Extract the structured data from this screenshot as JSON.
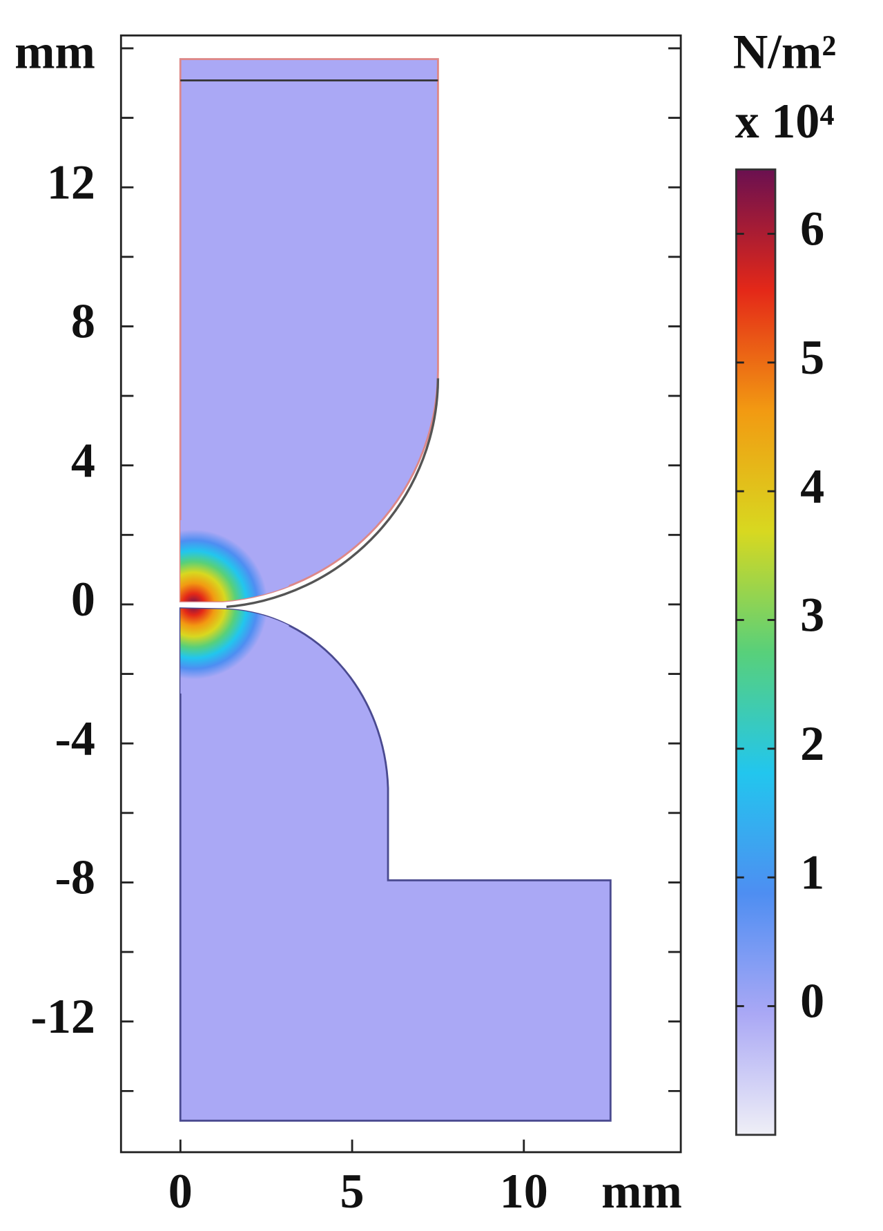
{
  "chart_data": {
    "type": "contour",
    "xlabel": "mm",
    "ylabel": "mm",
    "xlim": [
      -1.73,
      14.57
    ],
    "xticks": [
      0,
      5,
      10
    ],
    "ylim": [
      -15.76,
      16.37
    ],
    "yticks": [
      -12,
      -8,
      -4,
      0,
      4,
      8,
      12
    ],
    "yminorticks": [
      -14,
      -10,
      -6,
      -2,
      2,
      6,
      10,
      14,
      16
    ],
    "colorbar": {
      "label": "N/m²",
      "scale": "x 10⁴",
      "clim": [
        -1,
        6.5
      ],
      "ticks": [
        0,
        1,
        2,
        3,
        4,
        5,
        6
      ],
      "colormap": [
        "#efeff6",
        "#aaa8f5",
        "#4e8ef2",
        "#22c6ee",
        "#58d07a",
        "#d8d820",
        "#f29a12",
        "#e42818",
        "#6a1050"
      ]
    }
  }
}
